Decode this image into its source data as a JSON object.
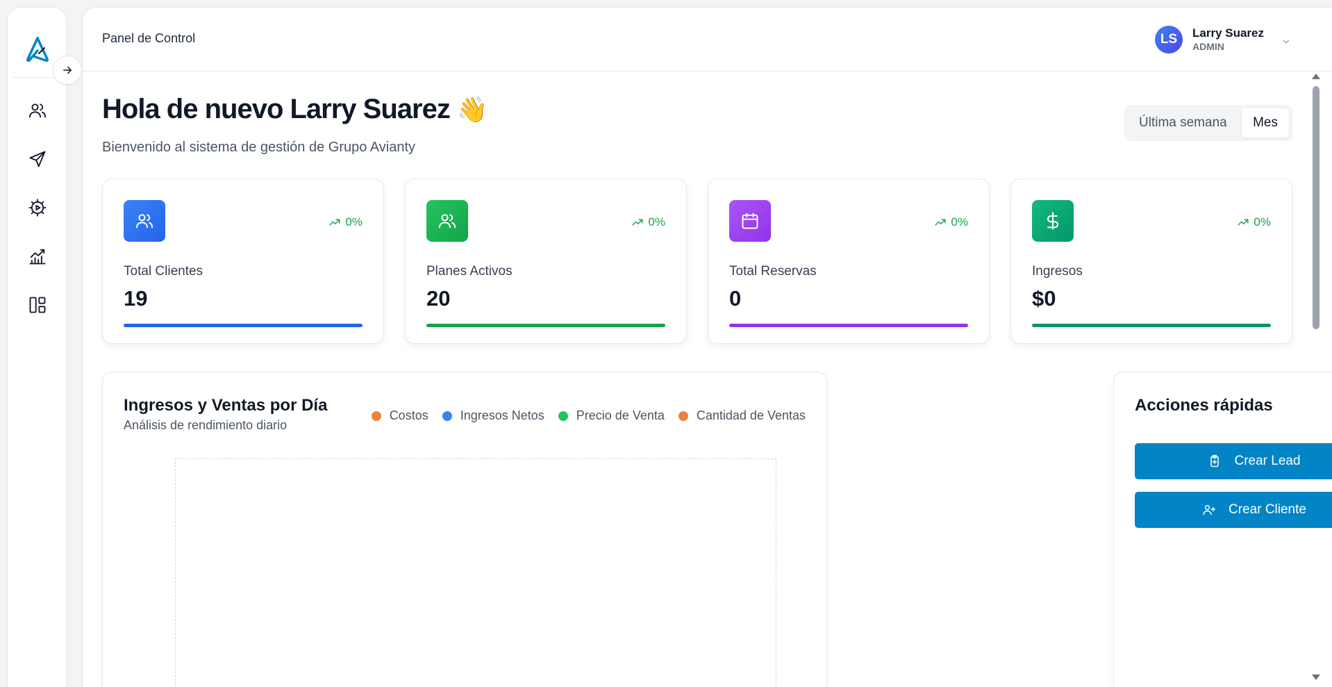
{
  "header": {
    "title": "Panel de Control",
    "user": {
      "initials": "LS",
      "name": "Larry Suarez",
      "role": "ADMIN"
    }
  },
  "greeting": {
    "title": "Hola de nuevo Larry Suarez",
    "emoji": "👋",
    "subtitle": "Bienvenido al sistema de gestión de Grupo Avianty"
  },
  "period": {
    "options": [
      "Última semana",
      "Mes"
    ],
    "selected": "Mes"
  },
  "stats": [
    {
      "label": "Total Clientes",
      "value": "19",
      "trend": "0%",
      "icon": "users-icon",
      "color": "#2563eb"
    },
    {
      "label": "Planes Activos",
      "value": "20",
      "trend": "0%",
      "icon": "users-icon",
      "color": "#16a34a"
    },
    {
      "label": "Total Reservas",
      "value": "0",
      "trend": "0%",
      "icon": "calendar-icon",
      "color": "#9333ea"
    },
    {
      "label": "Ingresos",
      "value": "$0",
      "trend": "0%",
      "icon": "dollar-icon",
      "color": "#059669"
    }
  ],
  "chart": {
    "title": "Ingresos y Ventas por Día",
    "subtitle": "Análisis de rendimiento diario",
    "legend": [
      {
        "label": "Costos",
        "color": "#f97316"
      },
      {
        "label": "Ingresos Netos",
        "color": "#3b82f6"
      },
      {
        "label": "Precio de Venta",
        "color": "#22c55e"
      },
      {
        "label": "Cantidad de Ventas",
        "color": "#f97316"
      }
    ]
  },
  "quick_actions": {
    "title": "Acciones rápidas",
    "buttons": [
      {
        "label": "Crear Lead",
        "icon": "clipboard-plus-icon"
      },
      {
        "label": "Crear Cliente",
        "icon": "user-plus-icon"
      }
    ]
  },
  "sidebar": {
    "items": [
      {
        "icon": "users-icon"
      },
      {
        "icon": "send-icon"
      },
      {
        "icon": "settings-icon"
      },
      {
        "icon": "chart-icon"
      },
      {
        "icon": "layout-icon"
      }
    ]
  }
}
